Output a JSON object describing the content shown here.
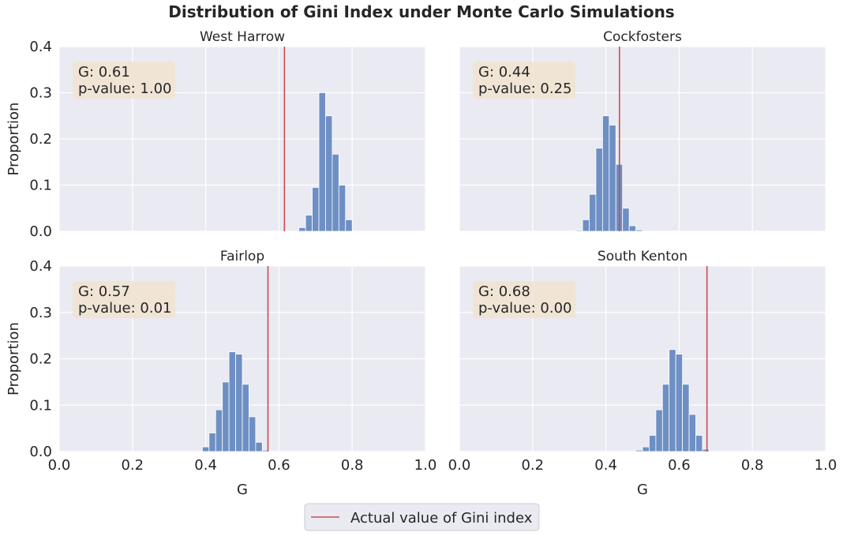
{
  "figure": {
    "title": "Distribution of Gini Index under Monte Carlo Simulations",
    "legend_label": "Actual value of Gini index",
    "colors": {
      "panel_bg": "#eaeaf2",
      "grid": "#ffffff",
      "bar": "#6e8fc4",
      "bar_edge": "#ffffff",
      "actual_line": "#c44e52",
      "annotation_bg": "#f1e4d2"
    }
  },
  "chart_data": [
    {
      "type": "bar",
      "title": "West Harrow",
      "xlabel": "",
      "ylabel": "Proportion",
      "xlim": [
        0.0,
        1.0
      ],
      "ylim": [
        0.0,
        0.4
      ],
      "xticks": [
        "0.0",
        "0.2",
        "0.4",
        "0.6",
        "0.8",
        "1.0"
      ],
      "yticks": [
        "0.0",
        "0.1",
        "0.2",
        "0.3",
        "0.4"
      ],
      "bin_width": 0.0182,
      "bins": [
        0.6545,
        0.6727,
        0.6909,
        0.7091,
        0.7273,
        0.7455,
        0.7636,
        0.7818
      ],
      "values": [
        0.008,
        0.035,
        0.095,
        0.3,
        0.25,
        0.167,
        0.1,
        0.025
      ],
      "actual_value": 0.615,
      "annotation": {
        "g_text": "G: 0.61",
        "p_text": "p-value: 1.00"
      }
    },
    {
      "type": "bar",
      "title": "Cockfosters",
      "xlabel": "",
      "ylabel": "",
      "xlim": [
        0.0,
        1.0
      ],
      "ylim": [
        0.0,
        0.4
      ],
      "xticks": [
        "0.0",
        "0.2",
        "0.4",
        "0.6",
        "0.8",
        "1.0"
      ],
      "yticks": [
        "0.0",
        "0.1",
        "0.2",
        "0.3",
        "0.4"
      ],
      "bin_width": 0.0182,
      "bins": [
        0.3182,
        0.3364,
        0.3545,
        0.3727,
        0.3909,
        0.4091,
        0.4273,
        0.4455,
        0.4636,
        0.4818
      ],
      "values": [
        0.002,
        0.025,
        0.08,
        0.18,
        0.25,
        0.23,
        0.145,
        0.05,
        0.012,
        0.003
      ],
      "actual_value": 0.437,
      "annotation": {
        "g_text": "G: 0.44",
        "p_text": "p-value: 0.25"
      }
    },
    {
      "type": "bar",
      "title": "Fairlop",
      "xlabel": "G",
      "ylabel": "Proportion",
      "xlim": [
        0.0,
        1.0
      ],
      "ylim": [
        0.0,
        0.4
      ],
      "xticks": [
        "0.0",
        "0.2",
        "0.4",
        "0.6",
        "0.8",
        "1.0"
      ],
      "yticks": [
        "0.0",
        "0.1",
        "0.2",
        "0.3",
        "0.4"
      ],
      "bin_width": 0.0182,
      "bins": [
        0.3909,
        0.4091,
        0.4273,
        0.4455,
        0.4636,
        0.4818,
        0.5,
        0.5182,
        0.5364,
        0.5545,
        0.5727
      ],
      "values": [
        0.01,
        0.04,
        0.09,
        0.15,
        0.215,
        0.21,
        0.145,
        0.075,
        0.02,
        0.003,
        0.001
      ],
      "actual_value": 0.57,
      "annotation": {
        "g_text": "G: 0.57",
        "p_text": "p-value: 0.01"
      }
    },
    {
      "type": "bar",
      "title": "South Kenton",
      "xlabel": "G",
      "ylabel": "",
      "xlim": [
        0.0,
        1.0
      ],
      "ylim": [
        0.0,
        0.4
      ],
      "xticks": [
        "0.0",
        "0.2",
        "0.4",
        "0.6",
        "0.8",
        "1.0"
      ],
      "yticks": [
        "0.0",
        "0.1",
        "0.2",
        "0.3",
        "0.4"
      ],
      "bin_width": 0.0182,
      "bins": [
        0.4818,
        0.5,
        0.5182,
        0.5364,
        0.5545,
        0.5727,
        0.5909,
        0.6091,
        0.6273,
        0.6455,
        0.6636
      ],
      "values": [
        0.003,
        0.01,
        0.035,
        0.09,
        0.145,
        0.22,
        0.21,
        0.145,
        0.08,
        0.035,
        0.005
      ],
      "actual_value": 0.676,
      "annotation": {
        "g_text": "G: 0.68",
        "p_text": "p-value: 0.00"
      }
    }
  ]
}
